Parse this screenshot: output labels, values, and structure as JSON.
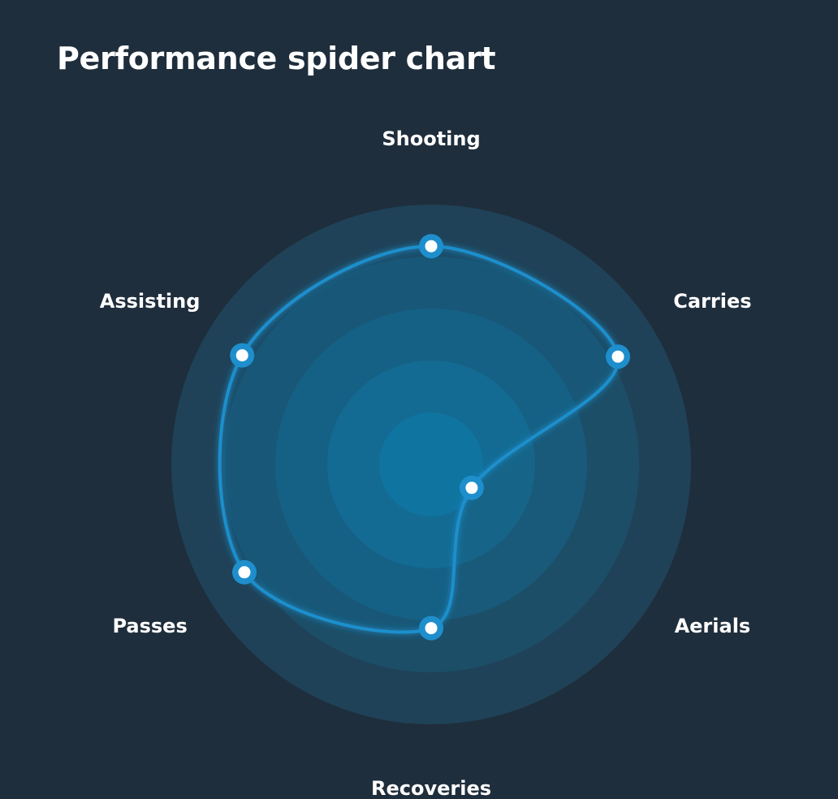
{
  "chart_data": {
    "type": "radar",
    "title": "Performance spider chart",
    "axes": [
      "Shooting",
      "Carries",
      "Aerials",
      "Recoveries",
      "Passes",
      "Assisting"
    ],
    "series": [
      {
        "values": [
          84,
          83,
          18,
          63,
          83,
          84
        ]
      }
    ],
    "range": [
      0,
      100
    ],
    "rings": 5,
    "grid": "concentric-circles",
    "colors": {
      "background": "#1f2e3c",
      "line": "#1e8fcc",
      "marker_fill": "#ffffff",
      "marker_stroke": "#1e8fcc",
      "ring_inner": "#137099",
      "ring_outer": "#1f4258",
      "label": "#ffffff"
    }
  }
}
